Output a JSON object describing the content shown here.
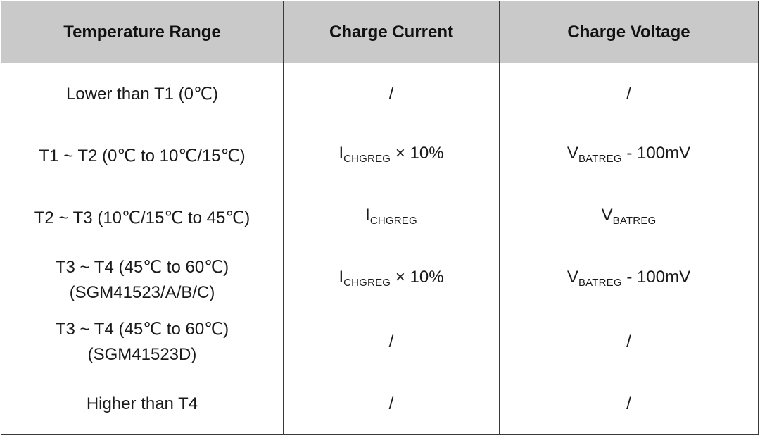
{
  "table": {
    "headers": [
      "Temperature Range",
      "Charge Current",
      "Charge Voltage"
    ],
    "rows": [
      {
        "range": [
          "Lower than T1 (0℃)"
        ],
        "current": {
          "text": "/"
        },
        "voltage": {
          "text": "/"
        }
      },
      {
        "range": [
          "T1 ~ T2 (0℃  to 10℃/15℃)"
        ],
        "current": {
          "symbol": "I",
          "subscript": "CHGREG",
          "suffix": " × 10%"
        },
        "voltage": {
          "symbol": "V",
          "subscript": "BATREG",
          "suffix": " - 100mV"
        }
      },
      {
        "range": [
          "T2 ~ T3 (10℃/15℃  to 45℃)"
        ],
        "current": {
          "symbol": "I",
          "subscript": "CHGREG",
          "suffix": ""
        },
        "voltage": {
          "symbol": "V",
          "subscript": "BATREG",
          "suffix": ""
        }
      },
      {
        "range": [
          "T3 ~ T4 (45℃  to 60℃)",
          "(SGM41523/A/B/C)"
        ],
        "current": {
          "symbol": "I",
          "subscript": "CHGREG",
          "suffix": " × 10%"
        },
        "voltage": {
          "symbol": "V",
          "subscript": "BATREG",
          "suffix": " - 100mV"
        }
      },
      {
        "range": [
          "T3 ~ T4 (45℃  to 60℃)",
          "(SGM41523D)"
        ],
        "current": {
          "text": "/"
        },
        "voltage": {
          "text": "/"
        }
      },
      {
        "range": [
          "Higher than T4"
        ],
        "current": {
          "text": "/"
        },
        "voltage": {
          "text": "/"
        }
      }
    ]
  }
}
